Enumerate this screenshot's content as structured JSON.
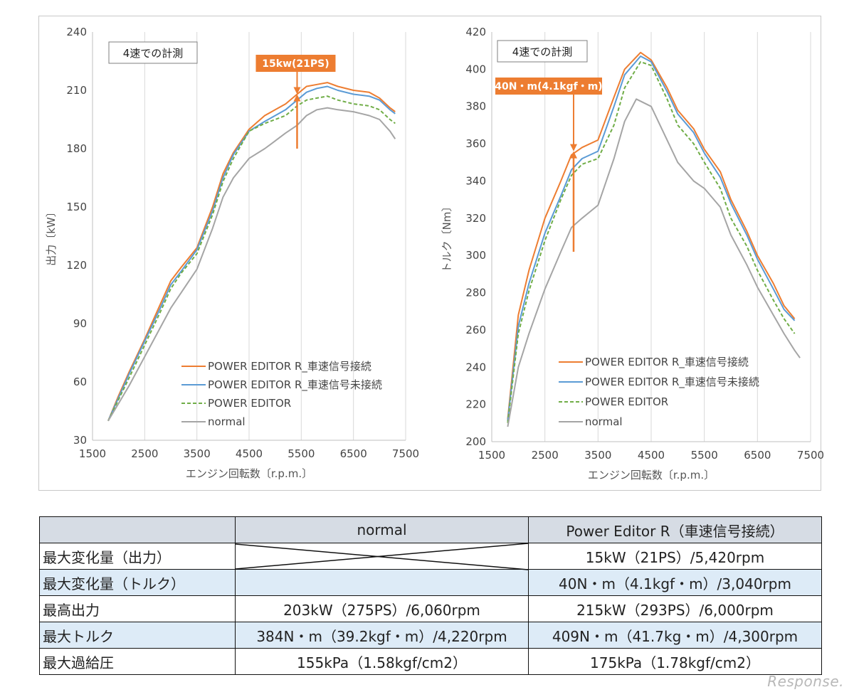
{
  "chart_data": [
    {
      "type": "line",
      "title": "",
      "xlabel": "エンジン回転数〔r.p.m.〕",
      "ylabel": "出力〔kW〕",
      "xlim": [
        1500,
        7500
      ],
      "ylim": [
        30,
        240
      ],
      "xticks": [
        1500,
        2500,
        3500,
        4500,
        5500,
        6500,
        7500
      ],
      "yticks": [
        30,
        60,
        90,
        120,
        150,
        180,
        210,
        240
      ],
      "grid": "vertical",
      "legend_position": "bottom-right",
      "note_box": "4速での計測",
      "callout": {
        "label": "15kw(21PS)",
        "x": 5420,
        "y_from": 180,
        "y_to": 208
      },
      "series": [
        {
          "name": "POWER EDITOR R_車速信号接続",
          "color": "#ed7d31",
          "dash": "solid",
          "x": [
            1800,
            2000,
            2200,
            2500,
            2800,
            3000,
            3200,
            3500,
            3800,
            4000,
            4200,
            4500,
            4800,
            5000,
            5200,
            5420,
            5600,
            5800,
            6000,
            6200,
            6500,
            6800,
            7000,
            7200,
            7300
          ],
          "y": [
            40,
            53,
            65,
            82,
            100,
            112,
            119,
            129,
            150,
            167,
            178,
            190,
            197,
            200,
            203,
            208,
            212,
            213,
            214,
            212,
            210,
            209,
            206,
            201,
            199
          ]
        },
        {
          "name": "POWER EDITOR R_車速信号未接続",
          "color": "#5b9bd5",
          "dash": "solid",
          "x": [
            1800,
            2000,
            2200,
            2500,
            2800,
            3000,
            3200,
            3500,
            3800,
            4000,
            4200,
            4500,
            4800,
            5000,
            5200,
            5420,
            5600,
            5800,
            6000,
            6200,
            6500,
            6800,
            7000,
            7200,
            7300
          ],
          "y": [
            40,
            52,
            64,
            81,
            98,
            110,
            117,
            128,
            148,
            165,
            177,
            189,
            194,
            197,
            200,
            205,
            209,
            211,
            212,
            210,
            208,
            207,
            205,
            200,
            198
          ]
        },
        {
          "name": "POWER EDITOR",
          "color": "#70ad47",
          "dash": "dashed",
          "x": [
            1800,
            2000,
            2200,
            2500,
            2800,
            3000,
            3200,
            3500,
            3800,
            4000,
            4200,
            4500,
            4800,
            5000,
            5200,
            5420,
            5600,
            5800,
            6000,
            6200,
            6500,
            6800,
            7000,
            7200,
            7300
          ],
          "y": [
            40,
            51,
            62,
            79,
            96,
            108,
            116,
            126,
            146,
            163,
            175,
            189,
            193,
            195,
            197,
            202,
            205,
            206,
            207,
            205,
            203,
            202,
            200,
            195,
            193
          ]
        },
        {
          "name": "normal",
          "color": "#a5a5a5",
          "dash": "solid",
          "x": [
            1800,
            2000,
            2200,
            2500,
            2800,
            3000,
            3200,
            3500,
            3800,
            4000,
            4200,
            4500,
            4800,
            5000,
            5200,
            5420,
            5600,
            5800,
            6000,
            6200,
            6500,
            6800,
            7000,
            7200,
            7300
          ],
          "y": [
            40,
            49,
            58,
            73,
            88,
            98,
            106,
            118,
            139,
            155,
            165,
            175,
            180,
            184,
            188,
            192,
            197,
            200,
            201,
            200,
            199,
            197,
            195,
            189,
            185
          ]
        }
      ]
    },
    {
      "type": "line",
      "title": "",
      "xlabel": "エンジン回転数〔r.p.m.〕",
      "ylabel": "トルク〔Nm〕",
      "xlim": [
        1500,
        7500
      ],
      "ylim": [
        200,
        420
      ],
      "xticks": [
        1500,
        2500,
        3500,
        4500,
        5500,
        6500,
        7500
      ],
      "yticks": [
        200,
        220,
        240,
        260,
        280,
        300,
        320,
        340,
        360,
        380,
        400,
        420
      ],
      "grid": "vertical",
      "legend_position": "bottom-right",
      "note_box": "4速での計測",
      "callout": {
        "label": "40N・m(4.1kgf・m)",
        "x": 3040,
        "y_from": 302,
        "y_to": 356
      },
      "series": [
        {
          "name": "POWER EDITOR R_車速信号接続",
          "color": "#ed7d31",
          "dash": "solid",
          "x": [
            1800,
            2000,
            2200,
            2500,
            2800,
            3000,
            3200,
            3500,
            3800,
            4000,
            4300,
            4500,
            4800,
            5000,
            5300,
            5500,
            5800,
            6000,
            6300,
            6500,
            6800,
            7000,
            7200
          ],
          "y": [
            212,
            268,
            292,
            320,
            340,
            354,
            358,
            362,
            385,
            400,
            409,
            405,
            390,
            378,
            368,
            357,
            345,
            330,
            313,
            300,
            285,
            273,
            266
          ]
        },
        {
          "name": "POWER EDITOR R_車速信号未接続",
          "color": "#5b9bd5",
          "dash": "solid",
          "x": [
            1800,
            2000,
            2200,
            2500,
            2800,
            3000,
            3200,
            3500,
            3800,
            4000,
            4300,
            4500,
            4800,
            5000,
            5300,
            5500,
            5800,
            6000,
            6300,
            6500,
            6800,
            7000,
            7200
          ],
          "y": [
            211,
            262,
            285,
            312,
            332,
            346,
            352,
            356,
            380,
            397,
            407,
            404,
            388,
            376,
            366,
            355,
            342,
            328,
            311,
            298,
            282,
            271,
            265
          ]
        },
        {
          "name": "POWER EDITOR",
          "color": "#70ad47",
          "dash": "dashed",
          "x": [
            1800,
            2000,
            2200,
            2500,
            2800,
            3000,
            3200,
            3500,
            3800,
            4000,
            4300,
            4500,
            4800,
            5000,
            5300,
            5500,
            5800,
            6000,
            6300,
            6500,
            6800,
            7000,
            7200
          ],
          "y": [
            210,
            258,
            281,
            308,
            330,
            343,
            349,
            352,
            370,
            390,
            404,
            402,
            384,
            370,
            360,
            350,
            336,
            320,
            305,
            292,
            276,
            266,
            258
          ]
        },
        {
          "name": "normal",
          "color": "#a5a5a5",
          "dash": "solid",
          "x": [
            1800,
            2000,
            2200,
            2500,
            2800,
            3000,
            3200,
            3500,
            3800,
            4000,
            4220,
            4500,
            4800,
            5000,
            5300,
            5500,
            5800,
            6000,
            6300,
            6500,
            6800,
            7000,
            7200,
            7300
          ],
          "y": [
            208,
            240,
            258,
            282,
            302,
            315,
            320,
            327,
            352,
            372,
            384,
            380,
            362,
            350,
            340,
            336,
            326,
            311,
            295,
            283,
            268,
            258,
            249,
            245
          ]
        }
      ]
    }
  ],
  "table": {
    "headers": [
      "",
      "normal",
      "Power Editor R（車速信号接続）"
    ],
    "rows": [
      {
        "label": "最大変化量（出力）",
        "normal": "",
        "per": "15kW（21PS）/5,420rpm",
        "diagonal": "up"
      },
      {
        "label": "最大変化量（トルク）",
        "normal": "",
        "per": "40N・m（4.1kgf・m）/3,040rpm",
        "diagonal": "down"
      },
      {
        "label": "最高出力",
        "normal": "203kW（275PS）/6,060rpm",
        "per": "215kW（293PS）/6,000rpm"
      },
      {
        "label": "最大トルク",
        "normal": "384N・m（39.2kgf・m）/4,220rpm",
        "per": "409N・m（41.7kg・m）/4,300rpm"
      },
      {
        "label": "最大過給圧",
        "normal": "155kPa（1.58kgf/cm2）",
        "per": "175kPa（1.78kgf/cm2）"
      }
    ]
  },
  "watermark": "Response."
}
